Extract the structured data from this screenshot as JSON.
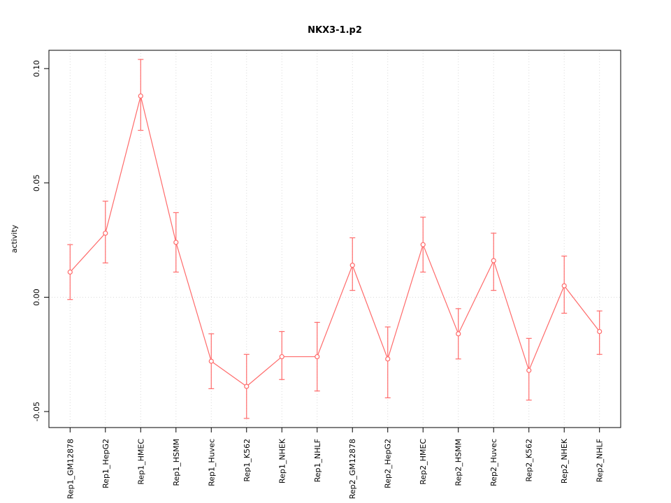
{
  "chart_data": {
    "type": "line",
    "title": "NKX3-1.p2",
    "xlabel": "",
    "ylabel": "activity",
    "legend_position": "none",
    "grid": true,
    "series_color": "#ff6b6b",
    "ylim": [
      -0.057,
      0.108
    ],
    "yticks": [
      -0.05,
      0.0,
      0.05,
      0.1
    ],
    "categories": [
      "Rep1_GM12878",
      "Rep1_HepG2",
      "Rep1_HMEC",
      "Rep1_HSMM",
      "Rep1_Huvec",
      "Rep1_K562",
      "Rep1_NHEK",
      "Rep1_NHLF",
      "Rep2_GM12878",
      "Rep2_HepG2",
      "Rep2_HMEC",
      "Rep2_HSMM",
      "Rep2_Huvec",
      "Rep2_K562",
      "Rep2_NHEK",
      "Rep2_NHLF"
    ],
    "values": [
      0.011,
      0.028,
      0.088,
      0.024,
      -0.028,
      -0.039,
      -0.026,
      -0.026,
      0.014,
      -0.027,
      0.023,
      -0.016,
      0.016,
      -0.032,
      0.005,
      -0.015
    ],
    "err_low": [
      -0.001,
      0.015,
      0.073,
      0.011,
      -0.04,
      -0.053,
      -0.036,
      -0.041,
      0.003,
      -0.044,
      0.011,
      -0.027,
      0.003,
      -0.045,
      -0.007,
      -0.025
    ],
    "err_high": [
      0.023,
      0.042,
      0.104,
      0.037,
      -0.016,
      -0.025,
      -0.015,
      -0.011,
      0.026,
      -0.013,
      0.035,
      -0.005,
      0.028,
      -0.018,
      0.018,
      -0.006
    ]
  }
}
